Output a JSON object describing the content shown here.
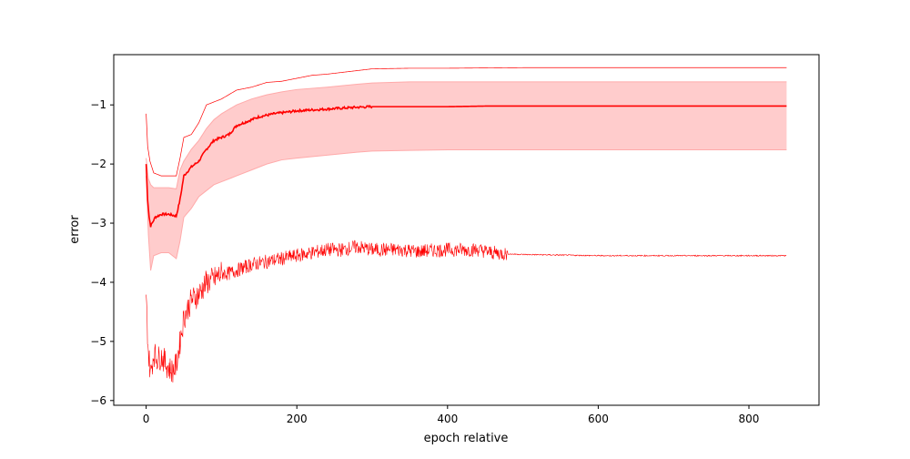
{
  "chart_data": {
    "type": "line",
    "title": "",
    "xlabel": "epoch relative",
    "ylabel": "error",
    "xlim": [
      -43,
      893
    ],
    "ylim": [
      -6.08,
      -0.15
    ],
    "xticks": [
      0,
      200,
      400,
      600,
      800
    ],
    "yticks": [
      -6,
      -5,
      -4,
      -3,
      -2,
      -1
    ],
    "tick_labels_x": [
      "0",
      "200",
      "400",
      "600",
      "800"
    ],
    "tick_labels_y": [
      "−6",
      "−5",
      "−4",
      "−3",
      "−2",
      "−1"
    ],
    "grid": false,
    "legend": "none",
    "colors": {
      "main": "#ff0000",
      "band_fill": "#ffcccc",
      "band_edge": "#ffaaaa"
    },
    "series": [
      {
        "role": "mean",
        "style": "solid",
        "x": [
          0,
          2,
          4,
          6,
          8,
          12,
          20,
          30,
          40,
          45,
          50,
          60,
          70,
          80,
          90,
          100,
          110,
          120,
          130,
          140,
          150,
          170,
          200,
          240,
          280,
          300,
          350,
          400,
          450,
          500,
          600,
          700,
          800,
          850
        ],
        "y": [
          -2.0,
          -2.6,
          -2.9,
          -3.05,
          -3.0,
          -2.9,
          -2.85,
          -2.85,
          -2.88,
          -2.6,
          -2.2,
          -2.05,
          -1.95,
          -1.75,
          -1.6,
          -1.55,
          -1.5,
          -1.35,
          -1.3,
          -1.25,
          -1.2,
          -1.15,
          -1.1,
          -1.07,
          -1.04,
          -1.03,
          -1.03,
          -1.03,
          -1.02,
          -1.02,
          -1.02,
          -1.02,
          -1.02,
          -1.02
        ]
      },
      {
        "role": "upper-band",
        "style": "shaded-edge",
        "x": [
          0,
          3,
          6,
          10,
          20,
          30,
          40,
          45,
          50,
          60,
          70,
          80,
          90,
          100,
          120,
          140,
          160,
          180,
          200,
          240,
          280,
          300,
          350,
          400,
          500,
          600,
          700,
          800,
          850
        ],
        "y": [
          -1.9,
          -2.25,
          -2.35,
          -2.4,
          -2.4,
          -2.4,
          -2.42,
          -2.1,
          -1.95,
          -1.75,
          -1.6,
          -1.4,
          -1.25,
          -1.15,
          -1.0,
          -0.9,
          -0.83,
          -0.78,
          -0.74,
          -0.7,
          -0.65,
          -0.63,
          -0.61,
          -0.61,
          -0.61,
          -0.61,
          -0.61,
          -0.61,
          -0.61
        ]
      },
      {
        "role": "lower-band",
        "style": "shaded-edge",
        "x": [
          0,
          3,
          6,
          10,
          20,
          30,
          40,
          45,
          50,
          60,
          70,
          80,
          90,
          100,
          120,
          140,
          160,
          180,
          200,
          240,
          280,
          300,
          350,
          400,
          500,
          600,
          700,
          800,
          850
        ],
        "y": [
          -2.2,
          -3.2,
          -3.8,
          -3.55,
          -3.5,
          -3.5,
          -3.6,
          -3.3,
          -2.9,
          -2.75,
          -2.55,
          -2.45,
          -2.35,
          -2.3,
          -2.2,
          -2.1,
          -2.0,
          -1.93,
          -1.9,
          -1.85,
          -1.8,
          -1.78,
          -1.77,
          -1.76,
          -1.76,
          -1.76,
          -1.76,
          -1.76,
          -1.76
        ]
      },
      {
        "role": "max",
        "style": "thin",
        "x": [
          0,
          2,
          5,
          10,
          20,
          30,
          40,
          45,
          50,
          60,
          70,
          80,
          90,
          100,
          120,
          140,
          160,
          180,
          200,
          220,
          240,
          260,
          280,
          300,
          350,
          400,
          500,
          600,
          700,
          800,
          850
        ],
        "y": [
          -1.15,
          -1.7,
          -1.95,
          -2.15,
          -2.2,
          -2.2,
          -2.2,
          -1.9,
          -1.55,
          -1.5,
          -1.3,
          -1.0,
          -0.95,
          -0.9,
          -0.75,
          -0.7,
          -0.62,
          -0.6,
          -0.55,
          -0.5,
          -0.48,
          -0.45,
          -0.42,
          -0.39,
          -0.38,
          -0.38,
          -0.37,
          -0.37,
          -0.37,
          -0.37,
          -0.37
        ]
      },
      {
        "role": "min",
        "style": "noisy",
        "x": [
          0,
          3,
          6,
          10,
          15,
          20,
          25,
          30,
          35,
          40,
          45,
          50,
          60,
          70,
          80,
          90,
          100,
          110,
          120,
          140,
          160,
          180,
          200,
          220,
          240,
          260,
          280,
          300,
          320,
          340,
          360,
          380,
          400,
          420,
          440,
          460,
          480,
          500,
          550,
          600,
          700,
          800,
          850
        ],
        "y": [
          -4.3,
          -5.2,
          -5.55,
          -5.2,
          -5.3,
          -5.25,
          -5.35,
          -5.45,
          -5.5,
          -5.4,
          -5.0,
          -4.6,
          -4.3,
          -4.2,
          -4.0,
          -3.95,
          -3.85,
          -3.85,
          -3.8,
          -3.7,
          -3.65,
          -3.6,
          -3.55,
          -3.5,
          -3.45,
          -3.45,
          -3.4,
          -3.45,
          -3.45,
          -3.45,
          -3.48,
          -3.46,
          -3.45,
          -3.45,
          -3.45,
          -3.5,
          -3.52,
          -3.53,
          -3.54,
          -3.55,
          -3.55,
          -3.55,
          -3.55
        ]
      }
    ]
  }
}
